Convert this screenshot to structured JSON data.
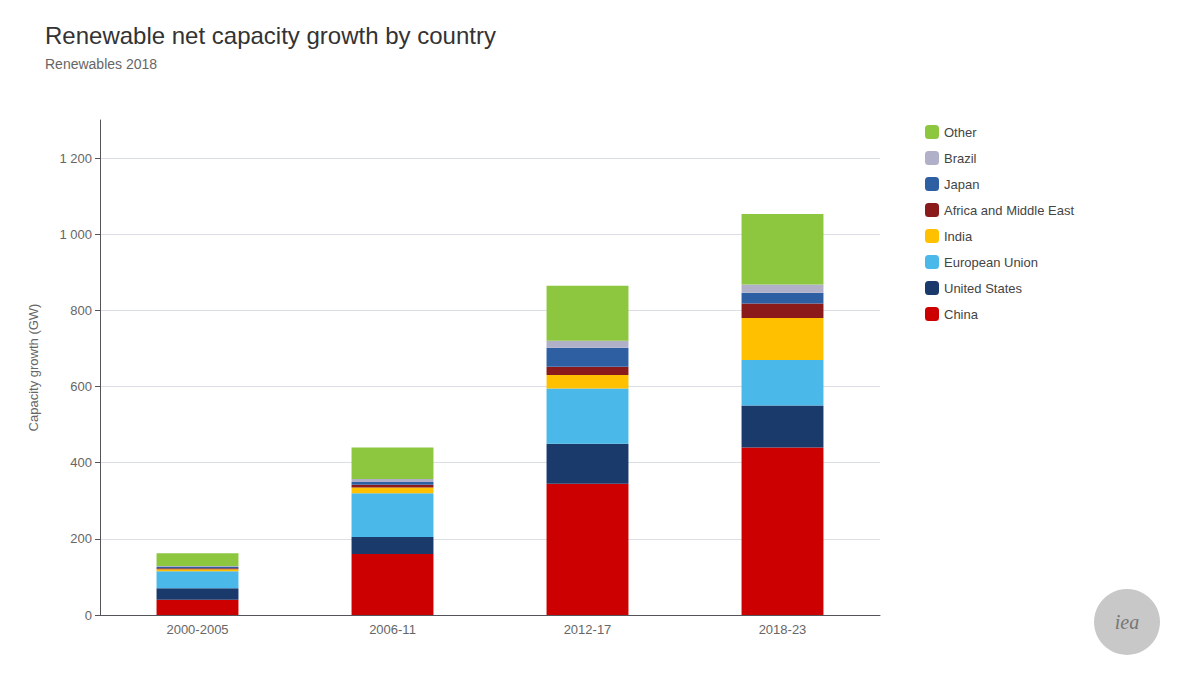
{
  "chart_data": {
    "type": "bar",
    "title": "Renewable net capacity growth by country",
    "subtitle": "Renewables 2018",
    "ylabel": "Capacity growth (GW)",
    "categories": [
      "2000-2005",
      "2006-11",
      "2012-17",
      "2018-23"
    ],
    "series": [
      {
        "name": "China",
        "color": "#cc0000",
        "values": [
          40,
          160,
          345,
          440
        ]
      },
      {
        "name": "United States",
        "color": "#1a3a6b",
        "values": [
          30,
          45,
          105,
          110
        ]
      },
      {
        "name": "European Union",
        "color": "#4ab8e8",
        "values": [
          45,
          115,
          145,
          120
        ]
      },
      {
        "name": "India",
        "color": "#ffc000",
        "values": [
          5,
          15,
          35,
          110
        ]
      },
      {
        "name": "Africa and Middle East",
        "color": "#8b1a1a",
        "values": [
          3,
          7,
          22,
          38
        ]
      },
      {
        "name": "Japan",
        "color": "#2e5fa3",
        "values": [
          3,
          7,
          50,
          28
        ]
      },
      {
        "name": "Brazil",
        "color": "#b0b0c8",
        "values": [
          3,
          8,
          18,
          22
        ]
      },
      {
        "name": "Other",
        "color": "#8dc63f",
        "values": [
          33,
          83,
          145,
          185
        ]
      }
    ],
    "stacked": true,
    "ylim": [
      0,
      1300
    ],
    "yticks": [
      0,
      200,
      400,
      600,
      800,
      {
        "value": 1000,
        "label": "1 000"
      },
      {
        "value": 1200,
        "label": "1 200"
      }
    ],
    "grid": true,
    "legend": "right",
    "annotations": [
      "iea"
    ]
  }
}
